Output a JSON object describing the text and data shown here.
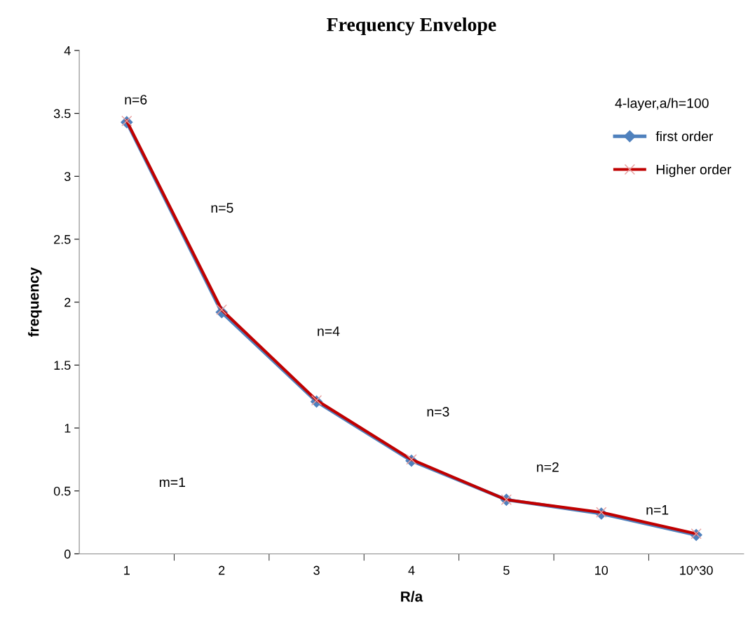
{
  "chart_data": {
    "type": "line",
    "title": "Frequency Envelope",
    "xlabel": "R/a",
    "ylabel": "frequency",
    "legend_title": "4-layer,a/h=100",
    "categories": [
      "1",
      "2",
      "3",
      "4",
      "5",
      "10",
      "10^30"
    ],
    "series": [
      {
        "name": "first order",
        "color": "#4f81bd",
        "marker": "diamond",
        "values": [
          3.43,
          1.92,
          1.21,
          0.74,
          0.43,
          0.32,
          0.15
        ]
      },
      {
        "name": "Higher order",
        "color": "#c00000",
        "marker": "cross",
        "values": [
          3.44,
          1.94,
          1.22,
          0.75,
          0.43,
          0.33,
          0.16
        ]
      }
    ],
    "ylim": [
      0,
      4
    ],
    "yticks": [
      0,
      0.5,
      1,
      1.5,
      2,
      2.5,
      3,
      3.5,
      4
    ],
    "grid": false,
    "legend": "top right",
    "annotations": [
      "n=6",
      "n=5",
      "n=4",
      "n=3",
      "n=2",
      "n=1",
      "m=1"
    ]
  }
}
